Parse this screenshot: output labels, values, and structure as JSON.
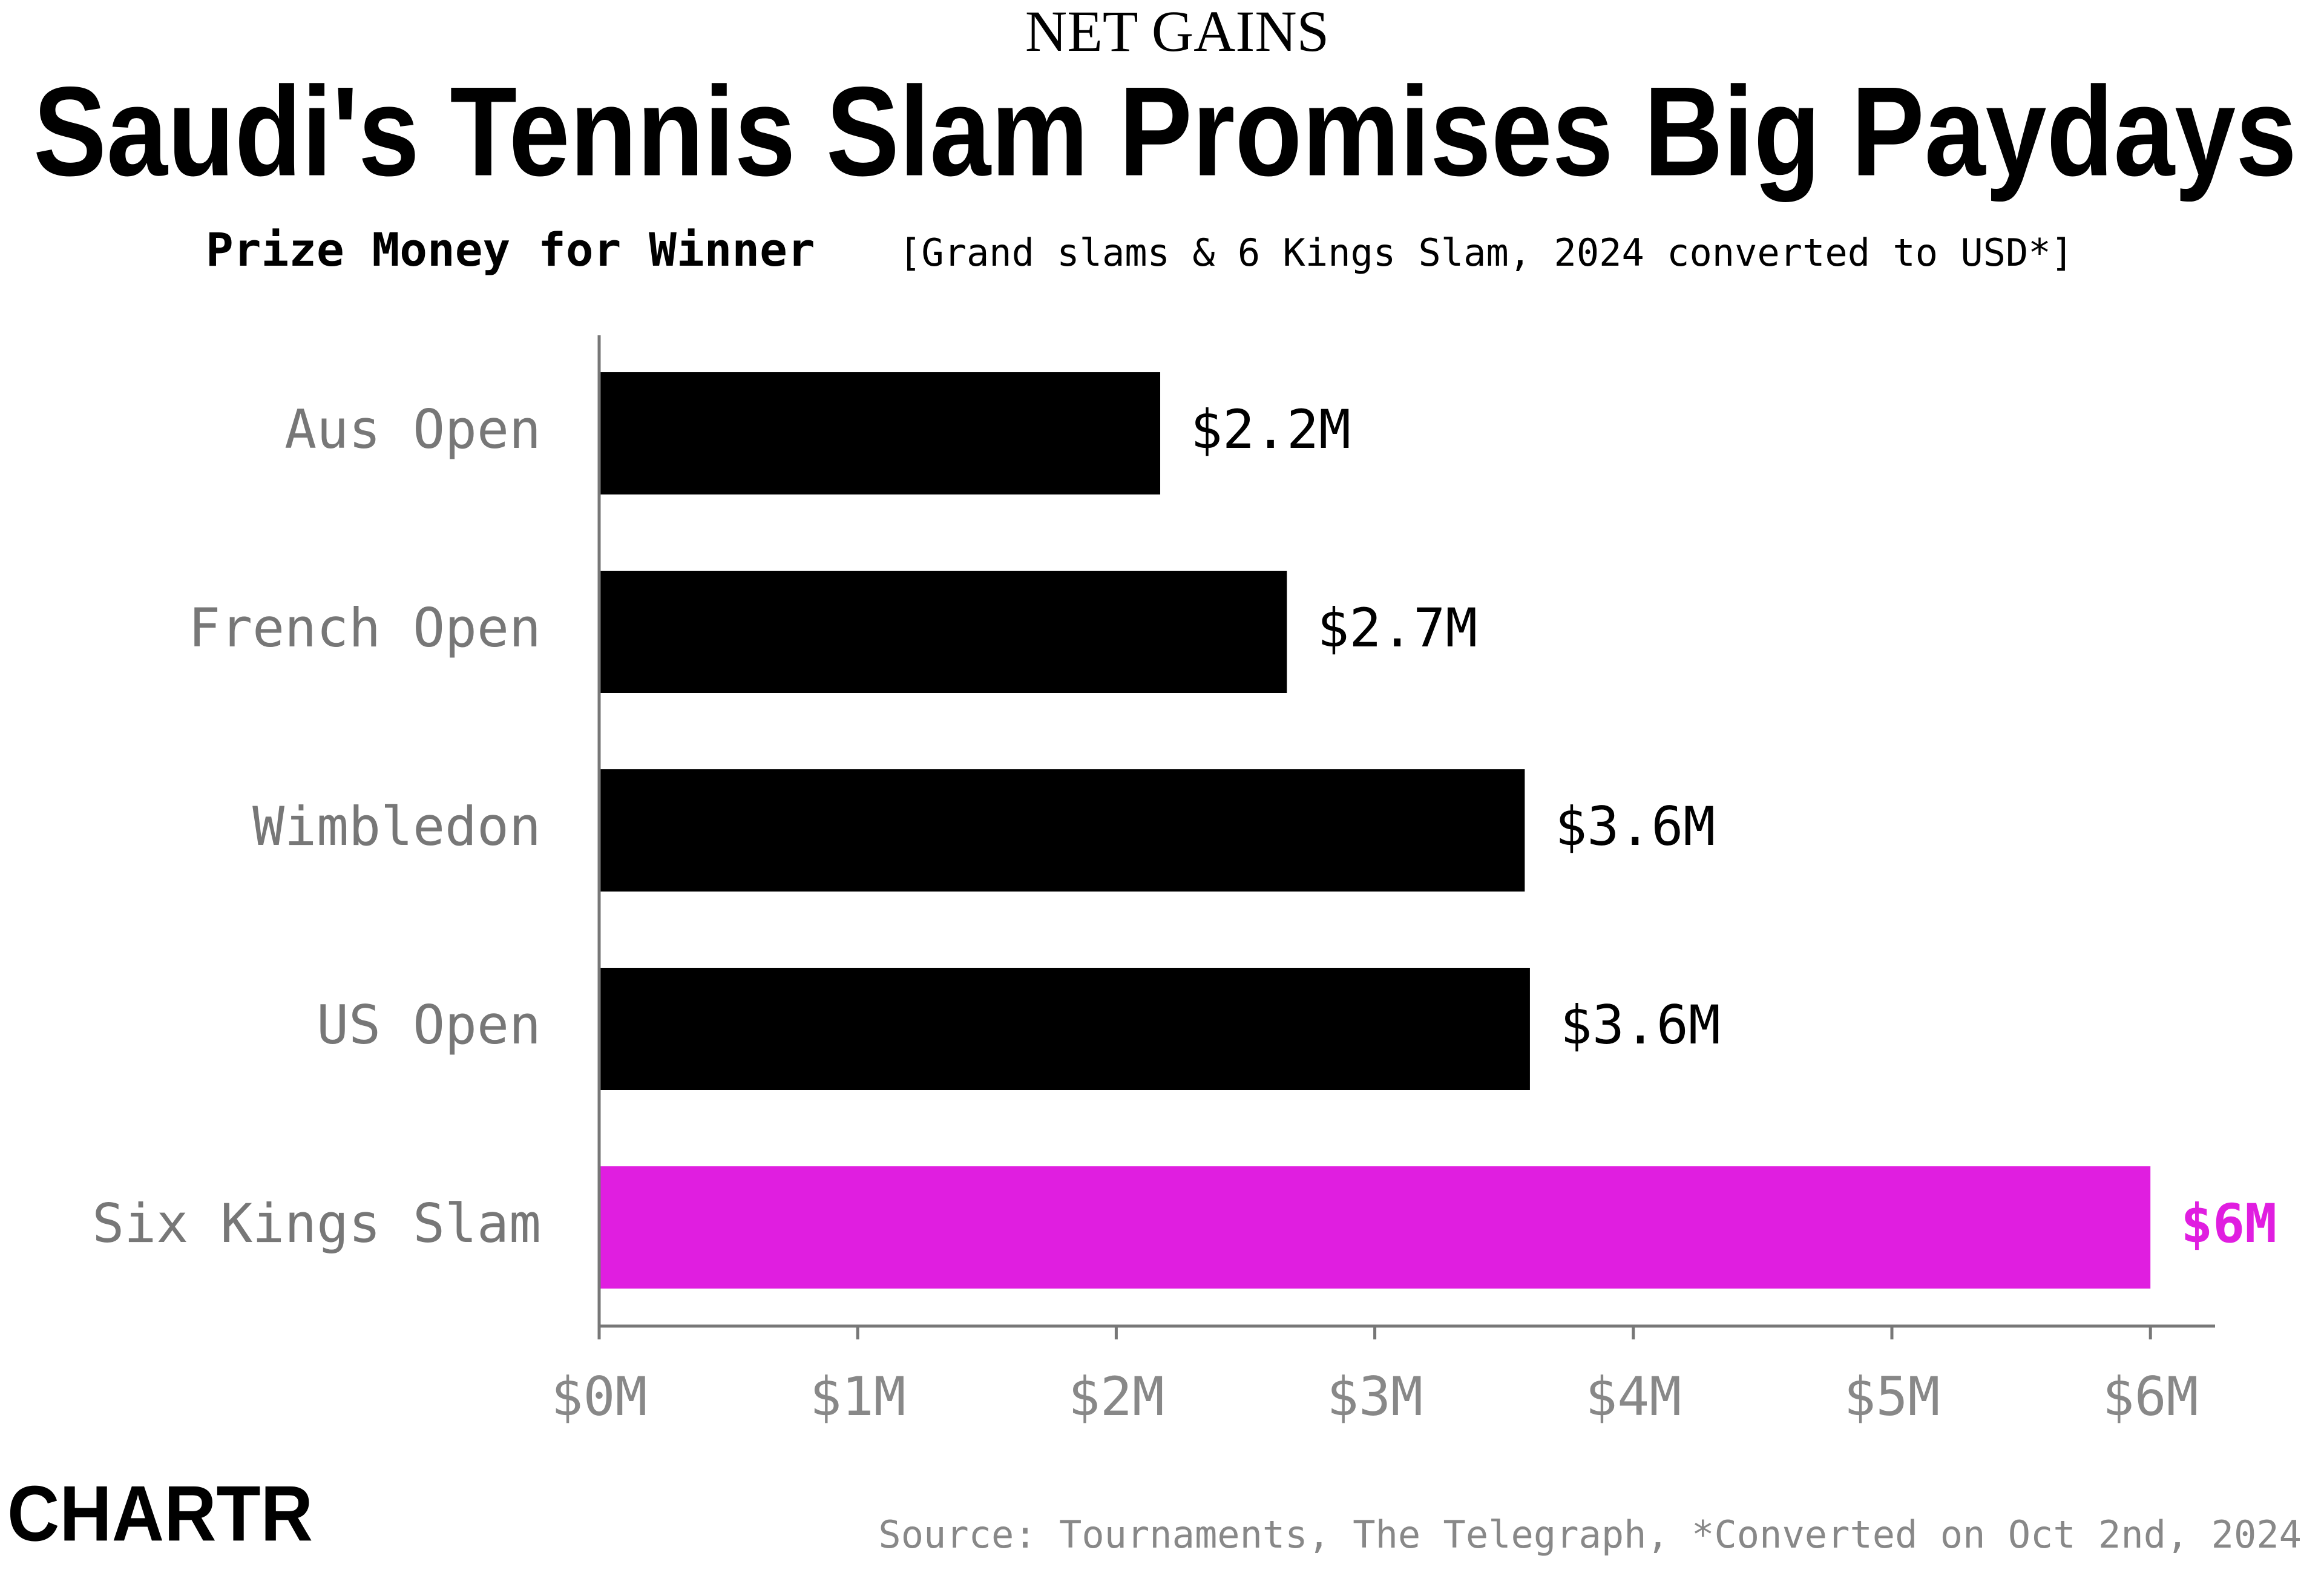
{
  "chart_data": {
    "type": "bar",
    "orientation": "horizontal",
    "kicker": "NET GAINS",
    "title": "Saudi's Tennis Slam Promises Big Paydays",
    "subtitle_bold": "Prize Money for Winner",
    "subtitle": "[Grand slams & 6 Kings Slam, 2024 converted to USD*]",
    "categories": [
      "Aus Open",
      "French Open",
      "Wimbledon",
      "US Open",
      "Six Kings Slam"
    ],
    "values": [
      2.17,
      2.66,
      3.58,
      3.6,
      6.0
    ],
    "value_labels": [
      "$2.2M",
      "$2.7M",
      "$3.6M",
      "$3.6M",
      "$6M"
    ],
    "colors": [
      "#000000",
      "#000000",
      "#000000",
      "#000000",
      "#e01ee0"
    ],
    "xlim": [
      0,
      6.25
    ],
    "xticks": [
      {
        "value": 0,
        "label": "$0M"
      },
      {
        "value": 1,
        "label": "$1M"
      },
      {
        "value": 2,
        "label": "$2M"
      },
      {
        "value": 3,
        "label": "$3M"
      },
      {
        "value": 4,
        "label": "$4M"
      },
      {
        "value": 5,
        "label": "$5M"
      },
      {
        "value": 6,
        "label": "$6M"
      }
    ],
    "logo": "CHARTR",
    "source": "Source: Tournaments, The Telegraph, *Converted on Oct 2nd, 2024"
  }
}
